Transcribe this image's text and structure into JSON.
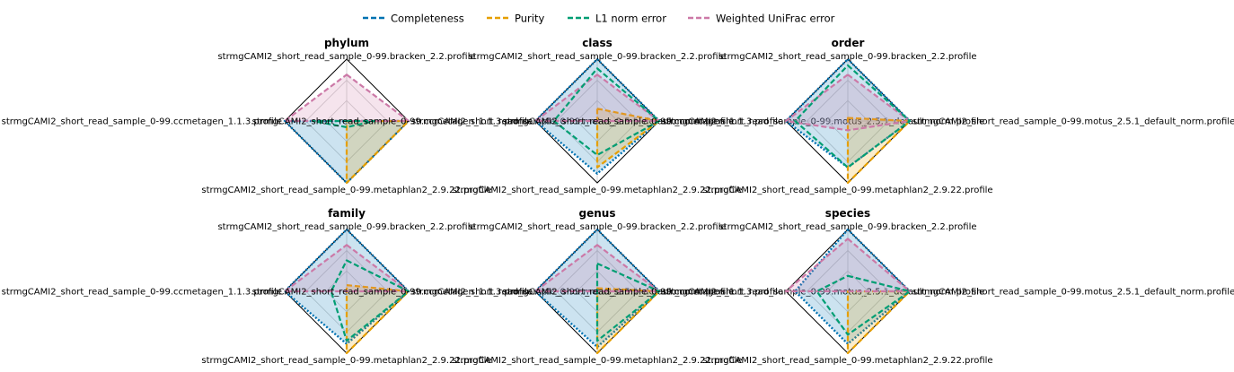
{
  "legend": {
    "items": [
      {
        "name": "Completeness",
        "color": "#0072b2"
      },
      {
        "name": "Purity",
        "color": "#e69f00"
      },
      {
        "name": "L1 norm error",
        "color": "#009e73"
      },
      {
        "name": "Weighted UniFrac error",
        "color": "#cc79a7"
      }
    ]
  },
  "chart_data": {
    "type": "radar",
    "rlim": [
      0,
      1
    ],
    "grid": true,
    "legend_position": "top-center",
    "line_style": "dashed",
    "highlight_color": "#ff0000",
    "axes_order": [
      "top",
      "right",
      "bottom",
      "left"
    ],
    "panels": [
      {
        "title": "phylum",
        "labels": {
          "top": "strmgCAMI2_short_read_sample_0-99.bracken_2.2.profile",
          "right": "strmgCAMI2_short_read_sample_0-99.motus_2.5.1_default_norm.profile",
          "bottom": "strmgCAMI2_short_read_sample_0-99.metaphlan2_2.9.22.profile",
          "left": "strmgCAMI2_short_read_sample_0-99.ccmetagen_1.1.3.profile"
        },
        "highlight": "top",
        "series": {
          "Completeness": [
            0.0,
            1.0,
            1.0,
            1.0
          ],
          "Purity": [
            0.0,
            1.0,
            1.0,
            0.0
          ],
          "L1 norm error": [
            0.0,
            0.45,
            0.1,
            0.55
          ],
          "Weighted UniFrac error": [
            0.75,
            1.0,
            0.0,
            1.0
          ]
        }
      },
      {
        "title": "class",
        "labels": {
          "top": "strmgCAMI2_short_read_sample_0-99.bracken_2.2.profile",
          "right": "strmgCAMI2_short_read_sample_0-99.motus_2.5.1_default_norm.profile",
          "bottom": "strmgCAMI2_short_read_sample_0-99.metaphlan2_2.9.22.profile",
          "left": "strmgCAMI2_short_read_sample_0-99.ccmetagen_1.1.3.profile"
        },
        "highlight": "",
        "series": {
          "Completeness": [
            1.0,
            1.0,
            0.85,
            1.0
          ],
          "Purity": [
            0.2,
            1.0,
            0.75,
            0.0
          ],
          "L1 norm error": [
            0.85,
            1.0,
            0.55,
            0.7
          ],
          "Weighted UniFrac error": [
            0.75,
            1.0,
            0.0,
            1.0
          ]
        }
      },
      {
        "title": "order",
        "labels": {
          "top": "strmgCAMI2_short_read_sample_0-99.bracken_2.2.profile",
          "right": "strmgCAMI2_short_read_sample_0-99.motus_2.5.1_default_norm.profile",
          "bottom": "strmgCAMI2_short_read_sample_0-99.metaphlan2_2.9.22.profile",
          "left": "strmgCAMI2_short_read_sample_0-99.ccmetagen_1.1.3.profile"
        },
        "highlight": "",
        "series": {
          "Completeness": [
            1.0,
            1.0,
            0.75,
            1.0
          ],
          "Purity": [
            0.05,
            1.0,
            1.0,
            0.0
          ],
          "L1 norm error": [
            0.9,
            1.0,
            0.75,
            0.85
          ],
          "Weighted UniFrac error": [
            0.75,
            1.0,
            0.15,
            1.0
          ]
        }
      },
      {
        "title": "family",
        "labels": {
          "top": "strmgCAMI2_short_read_sample_0-99.bracken_2.2.profile",
          "right": "strmgCAMI2_short_read_sample_0-99.motus_2.5.1_default_norm.profile",
          "bottom": "strmgCAMI2_short_read_sample_0-99.metaphlan2_2.9.22.profile",
          "left": "strmgCAMI2_short_read_sample_0-99.ccmetagen_1.1.3.profile"
        },
        "highlight": "",
        "series": {
          "Completeness": [
            1.0,
            1.0,
            0.85,
            1.0
          ],
          "Purity": [
            0.1,
            1.0,
            1.0,
            0.0
          ],
          "L1 norm error": [
            0.5,
            1.0,
            0.8,
            0.25
          ],
          "Weighted UniFrac error": [
            0.75,
            1.0,
            0.0,
            1.0
          ]
        }
      },
      {
        "title": "genus",
        "labels": {
          "top": "strmgCAMI2_short_read_sample_0-99.bracken_2.2.profile",
          "right": "strmgCAMI2_short_read_sample_0-99.motus_2.5.1_default_norm.profile",
          "bottom": "strmgCAMI2_short_read_sample_0-99.metaphlan2_2.9.22.profile",
          "left": "strmgCAMI2_short_read_sample_0-99.ccmetagen_1.1.3.profile"
        },
        "highlight": "",
        "series": {
          "Completeness": [
            1.0,
            1.0,
            0.9,
            1.0
          ],
          "Purity": [
            0.05,
            1.0,
            1.0,
            0.0
          ],
          "L1 norm error": [
            0.45,
            1.0,
            0.8,
            0.0
          ],
          "Weighted UniFrac error": [
            0.75,
            1.0,
            0.0,
            1.0
          ]
        }
      },
      {
        "title": "species",
        "labels": {
          "top": "strmgCAMI2_short_read_sample_0-99.bracken_2.2.profile",
          "right": "strmgCAMI2_short_read_sample_0-99.motus_2.5.1_default_norm.profile",
          "bottom": "strmgCAMI2_short_read_sample_0-99.metaphlan2_2.9.22.profile",
          "left": "strmgCAMI2_short_read_sample_0-99.ccmetagen_1.1.3.profile"
        },
        "highlight": "",
        "series": {
          "Completeness": [
            1.0,
            1.0,
            0.85,
            0.85
          ],
          "Purity": [
            0.0,
            1.0,
            1.0,
            0.0
          ],
          "L1 norm error": [
            0.25,
            1.0,
            0.7,
            0.5
          ],
          "Weighted UniFrac error": [
            0.85,
            1.0,
            0.0,
            1.0
          ]
        }
      }
    ]
  }
}
